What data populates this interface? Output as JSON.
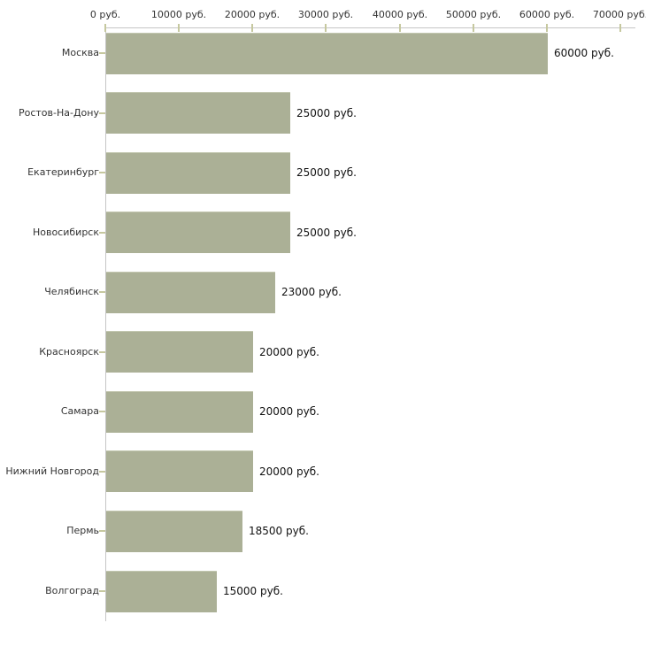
{
  "chart_data": {
    "type": "bar",
    "orientation": "horizontal",
    "title": "",
    "xlabel": "",
    "ylabel": "",
    "categories": [
      "Москва",
      "Ростов-На-Дону",
      "Екатеринбург",
      "Новосибирск",
      "Челябинск",
      "Красноярск",
      "Самара",
      "Нижний Новгород",
      "Пермь",
      "Волгоград"
    ],
    "values": [
      60000,
      25000,
      25000,
      25000,
      23000,
      20000,
      20000,
      20000,
      18500,
      15000
    ],
    "value_labels": [
      "60000 руб.",
      "25000 руб.",
      "25000 руб.",
      "25000 руб.",
      "23000 руб.",
      "20000 руб.",
      "20000 руб.",
      "20000 руб.",
      "18500 руб.",
      "15000 руб."
    ],
    "x_tick_labels": [
      "0 руб.",
      "10000 руб.",
      "20000 руб.",
      "30000 руб.",
      "40000 руб.",
      "50000 руб.",
      "60000 руб.",
      "70000 руб."
    ],
    "xlim": [
      0,
      70000
    ],
    "x_tick_interval": 10000,
    "grid": false,
    "legend": false,
    "unit": "руб.",
    "colors": {
      "bar_fill": "#abb096",
      "bar_edge": "#c3c7b0",
      "axis_line": "#c6c6c6",
      "tick_mark": "#c6c89f",
      "category_text": "#333333",
      "tick_text": "#333333",
      "value_text": "#111111",
      "background": "#ffffff"
    }
  }
}
